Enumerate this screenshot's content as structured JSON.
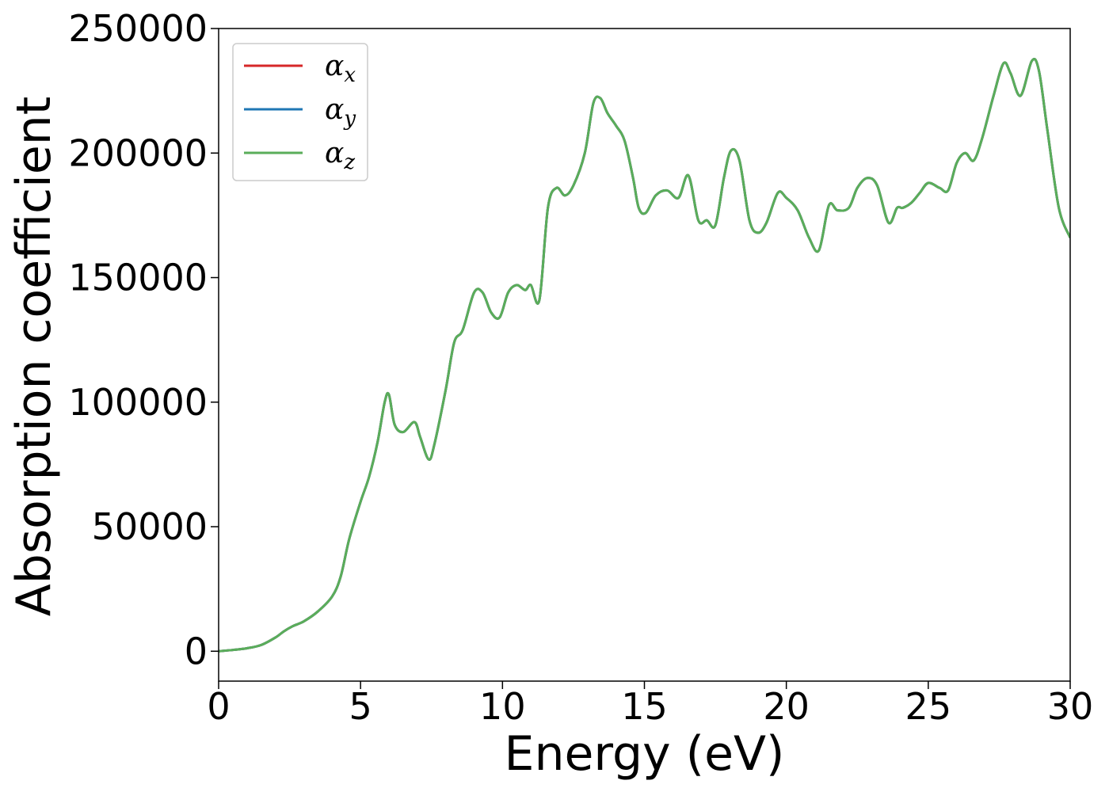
{
  "chart_data": {
    "type": "line",
    "title": "",
    "xlabel": "Energy (eV)",
    "ylabel": "Absorption coefficient",
    "xlim": [
      0,
      30
    ],
    "ylim": [
      -12000,
      250000
    ],
    "xticks": [
      0,
      5,
      10,
      15,
      20,
      25,
      30
    ],
    "yticks": [
      0,
      50000,
      100000,
      150000,
      200000,
      250000
    ],
    "grid": false,
    "legend_position": "top-left",
    "series": [
      {
        "name": "α_x",
        "base": "α",
        "sub": "x",
        "color": "#d62728",
        "x": [
          0,
          0.5,
          1,
          1.5,
          2,
          2.3,
          2.6,
          3,
          3.5,
          4,
          4.3,
          4.6,
          5,
          5.3,
          5.6,
          5.85,
          6,
          6.2,
          6.5,
          6.9,
          7.1,
          7.4,
          7.6,
          8,
          8.3,
          8.6,
          9,
          9.3,
          9.6,
          9.9,
          10.2,
          10.5,
          10.8,
          11,
          11.3,
          11.6,
          11.9,
          12.2,
          12.5,
          12.9,
          13.2,
          13.45,
          13.7,
          14,
          14.3,
          14.6,
          14.8,
          15.05,
          15.4,
          15.8,
          16.2,
          16.55,
          16.9,
          17.2,
          17.5,
          17.8,
          18.05,
          18.35,
          18.7,
          19,
          19.3,
          19.7,
          20,
          20.4,
          20.8,
          21.15,
          21.5,
          21.8,
          22.2,
          22.5,
          22.85,
          23.2,
          23.6,
          23.9,
          24.1,
          24.4,
          24.7,
          25,
          25.4,
          25.7,
          26,
          26.3,
          26.6,
          26.9,
          27.3,
          27.65,
          27.9,
          28.25,
          28.65,
          28.9,
          29.2,
          29.6,
          30
        ],
        "y": [
          0,
          500,
          1200,
          2500,
          5500,
          8000,
          10000,
          12000,
          16000,
          22000,
          30000,
          45000,
          60000,
          70000,
          84000,
          100000,
          103000,
          91000,
          88000,
          92000,
          86000,
          77000,
          83000,
          105000,
          124000,
          129000,
          144000,
          144000,
          136000,
          134000,
          144000,
          147000,
          145000,
          147000,
          141000,
          178000,
          186000,
          183000,
          187000,
          200000,
          220000,
          222000,
          216000,
          211000,
          205000,
          190000,
          178000,
          176000,
          183000,
          185000,
          182000,
          191000,
          173000,
          173000,
          171000,
          190000,
          201000,
          197000,
          173000,
          168000,
          172000,
          184000,
          182000,
          177000,
          166000,
          161000,
          179000,
          177000,
          178000,
          186000,
          190000,
          187000,
          172000,
          178000,
          178000,
          180000,
          184000,
          188000,
          186000,
          185000,
          196000,
          200000,
          197000,
          206000,
          223000,
          236000,
          232000,
          223000,
          237000,
          233000,
          209000,
          178000,
          166000
        ]
      },
      {
        "name": "α_y",
        "base": "α",
        "sub": "y",
        "color": "#1f77b4",
        "x": [
          0,
          0.5,
          1,
          1.5,
          2,
          2.3,
          2.6,
          3,
          3.5,
          4,
          4.3,
          4.6,
          5,
          5.3,
          5.6,
          5.85,
          6,
          6.2,
          6.5,
          6.9,
          7.1,
          7.4,
          7.6,
          8,
          8.3,
          8.6,
          9,
          9.3,
          9.6,
          9.9,
          10.2,
          10.5,
          10.8,
          11,
          11.3,
          11.6,
          11.9,
          12.2,
          12.5,
          12.9,
          13.2,
          13.45,
          13.7,
          14,
          14.3,
          14.6,
          14.8,
          15.05,
          15.4,
          15.8,
          16.2,
          16.55,
          16.9,
          17.2,
          17.5,
          17.8,
          18.05,
          18.35,
          18.7,
          19,
          19.3,
          19.7,
          20,
          20.4,
          20.8,
          21.15,
          21.5,
          21.8,
          22.2,
          22.5,
          22.85,
          23.2,
          23.6,
          23.9,
          24.1,
          24.4,
          24.7,
          25,
          25.4,
          25.7,
          26,
          26.3,
          26.6,
          26.9,
          27.3,
          27.65,
          27.9,
          28.25,
          28.65,
          28.9,
          29.2,
          29.6,
          30
        ],
        "y": [
          0,
          500,
          1200,
          2500,
          5500,
          8000,
          10000,
          12000,
          16000,
          22000,
          30000,
          45000,
          60000,
          70000,
          84000,
          100000,
          103000,
          91000,
          88000,
          92000,
          86000,
          77000,
          83000,
          105000,
          124000,
          129000,
          144000,
          144000,
          136000,
          134000,
          144000,
          147000,
          145000,
          147000,
          141000,
          178000,
          186000,
          183000,
          187000,
          200000,
          220000,
          222000,
          216000,
          211000,
          205000,
          190000,
          178000,
          176000,
          183000,
          185000,
          182000,
          191000,
          173000,
          173000,
          171000,
          190000,
          201000,
          197000,
          173000,
          168000,
          172000,
          184000,
          182000,
          177000,
          166000,
          161000,
          179000,
          177000,
          178000,
          186000,
          190000,
          187000,
          172000,
          178000,
          178000,
          180000,
          184000,
          188000,
          186000,
          185000,
          196000,
          200000,
          197000,
          206000,
          223000,
          236000,
          232000,
          223000,
          237000,
          233000,
          209000,
          178000,
          166000
        ]
      },
      {
        "name": "α_z",
        "base": "α",
        "sub": "z",
        "color": "#5aad5a",
        "x": [
          0,
          0.5,
          1,
          1.5,
          2,
          2.3,
          2.6,
          3,
          3.5,
          4,
          4.3,
          4.6,
          5,
          5.3,
          5.6,
          5.85,
          6,
          6.2,
          6.5,
          6.9,
          7.1,
          7.4,
          7.6,
          8,
          8.3,
          8.6,
          9,
          9.3,
          9.6,
          9.9,
          10.2,
          10.5,
          10.8,
          11,
          11.3,
          11.6,
          11.9,
          12.2,
          12.5,
          12.9,
          13.2,
          13.45,
          13.7,
          14,
          14.3,
          14.6,
          14.8,
          15.05,
          15.4,
          15.8,
          16.2,
          16.55,
          16.9,
          17.2,
          17.5,
          17.8,
          18.05,
          18.35,
          18.7,
          19,
          19.3,
          19.7,
          20,
          20.4,
          20.8,
          21.15,
          21.5,
          21.8,
          22.2,
          22.5,
          22.85,
          23.2,
          23.6,
          23.9,
          24.1,
          24.4,
          24.7,
          25,
          25.4,
          25.7,
          26,
          26.3,
          26.6,
          26.9,
          27.3,
          27.65,
          27.9,
          28.25,
          28.65,
          28.9,
          29.2,
          29.6,
          30
        ],
        "y": [
          0,
          500,
          1200,
          2500,
          5500,
          8000,
          10000,
          12000,
          16000,
          22000,
          30000,
          45000,
          60000,
          70000,
          84000,
          100000,
          103000,
          91000,
          88000,
          92000,
          86000,
          77000,
          83000,
          105000,
          124000,
          129000,
          144000,
          144000,
          136000,
          134000,
          144000,
          147000,
          145000,
          147000,
          141000,
          178000,
          186000,
          183000,
          187000,
          200000,
          220000,
          222000,
          216000,
          211000,
          205000,
          190000,
          178000,
          176000,
          183000,
          185000,
          182000,
          191000,
          173000,
          173000,
          171000,
          190000,
          201000,
          197000,
          173000,
          168000,
          172000,
          184000,
          182000,
          177000,
          166000,
          161000,
          179000,
          177000,
          178000,
          186000,
          190000,
          187000,
          172000,
          178000,
          178000,
          180000,
          184000,
          188000,
          186000,
          185000,
          196000,
          200000,
          197000,
          206000,
          223000,
          236000,
          232000,
          223000,
          237000,
          233000,
          209000,
          178000,
          166000
        ]
      }
    ]
  }
}
